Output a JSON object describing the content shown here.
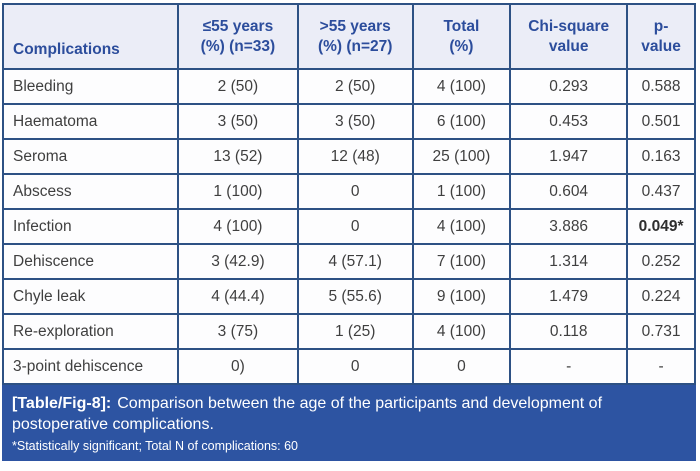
{
  "table": {
    "columns": [
      {
        "name": "complications",
        "lines": [
          "Complications"
        ]
      },
      {
        "name": "le55-years",
        "lines": [
          "≤55 years",
          "(%) (n=33)"
        ]
      },
      {
        "name": "gt55-years",
        "lines": [
          ">55 years",
          "(%) (n=27)"
        ]
      },
      {
        "name": "total",
        "lines": [
          "Total",
          "(%)"
        ]
      },
      {
        "name": "chi-square",
        "lines": [
          "Chi-square",
          "value"
        ]
      },
      {
        "name": "p-value",
        "lines": [
          "p-",
          "value"
        ]
      }
    ],
    "rows": [
      [
        "Bleeding",
        "2 (50)",
        "2 (50)",
        "4 (100)",
        "0.293",
        "0.588"
      ],
      [
        "Haematoma",
        "3 (50)",
        "3 (50)",
        "6 (100)",
        "0.453",
        "0.501"
      ],
      [
        "Seroma",
        "13 (52)",
        "12 (48)",
        "25 (100)",
        "1.947",
        "0.163"
      ],
      [
        "Abscess",
        "1 (100)",
        "0",
        "1 (100)",
        "0.604",
        "0.437"
      ],
      [
        "Infection",
        "4 (100)",
        "0",
        "4 (100)",
        "3.886",
        "0.049*"
      ],
      [
        "Dehiscence",
        "3 (42.9)",
        "4 (57.1)",
        "7 (100)",
        "1.314",
        "0.252"
      ],
      [
        "Chyle leak",
        "4 (44.4)",
        "5 (55.6)",
        "9 (100)",
        "1.479",
        "0.224"
      ],
      [
        "Re-exploration",
        "3 (75)",
        "1 (25)",
        "4 (100)",
        "0.118",
        "0.731"
      ],
      [
        "3-point dehiscence",
        "0)",
        "0",
        "0",
        "-",
        "-"
      ]
    ],
    "bold_cells": [
      [
        4,
        5
      ]
    ]
  },
  "caption": {
    "label": "[Table/Fig-8]:",
    "text": "Comparison between the age of the participants and development of postoperative complications.",
    "footnote": "*Statistically significant; Total N of complications: 60"
  },
  "colors": {
    "grid_border": "#2d5184",
    "header_bg": "#ebedf7",
    "header_text": "#2c4d9c",
    "body_text": "#3f3f3f",
    "caption_bg": "#2d54a2",
    "caption_text": "#ffffff"
  }
}
